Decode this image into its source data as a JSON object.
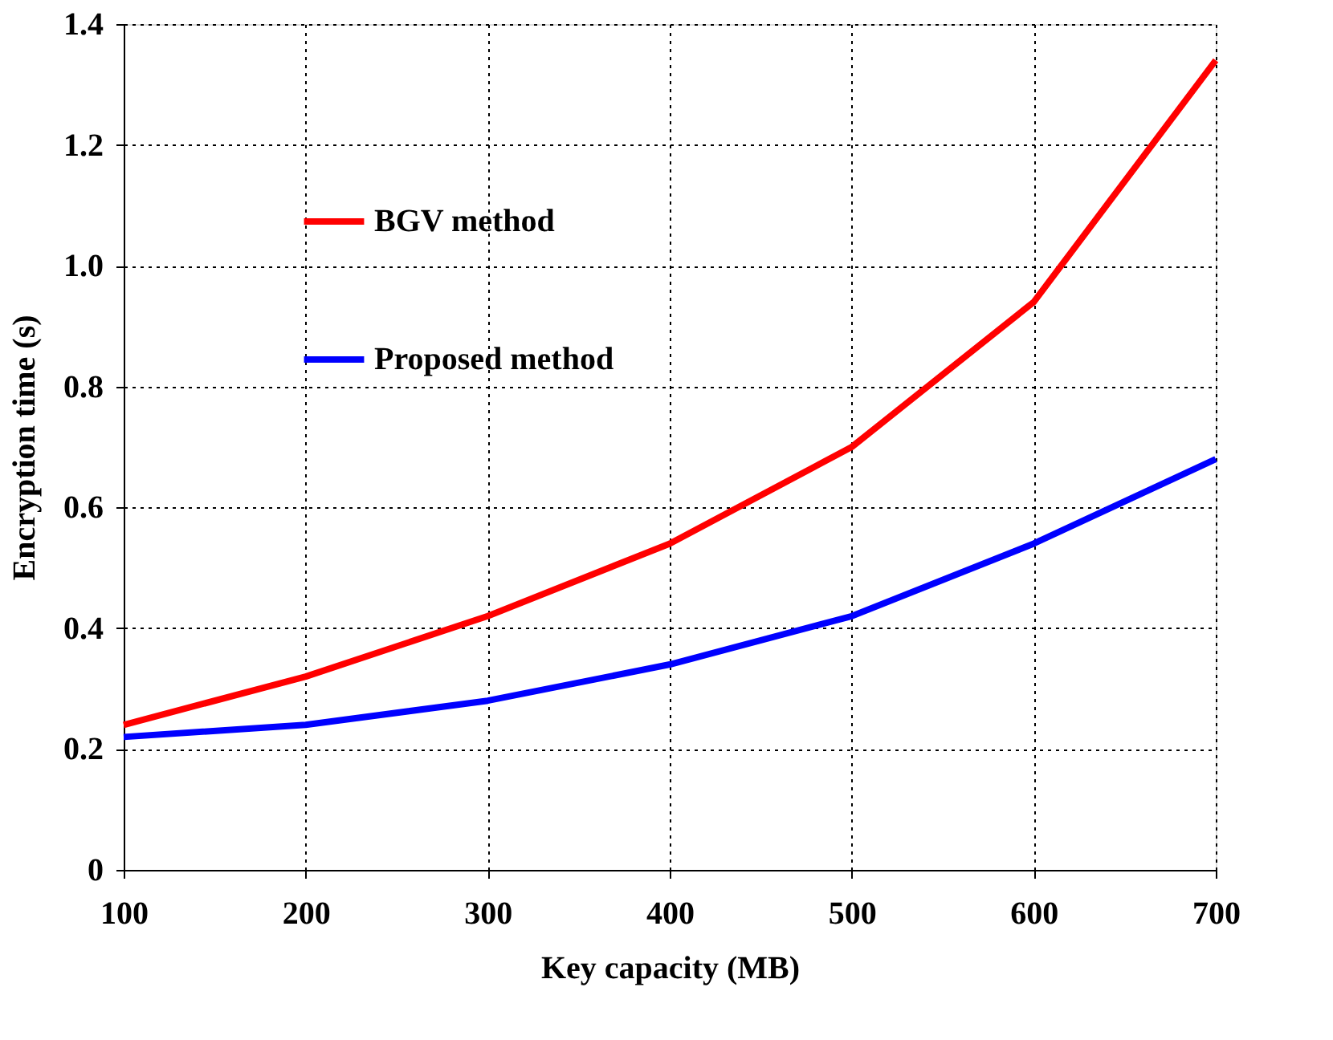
{
  "chart_data": {
    "type": "line",
    "xlabel": "Key capacity (MB)",
    "ylabel": "Encryption time (s)",
    "x": [
      100,
      200,
      300,
      400,
      500,
      600,
      700
    ],
    "series": [
      {
        "name": "BGV method",
        "color": "#ff0000",
        "values": [
          0.24,
          0.32,
          0.42,
          0.54,
          0.7,
          0.94,
          1.34
        ]
      },
      {
        "name": "Proposed method",
        "color": "#0000ff",
        "values": [
          0.22,
          0.24,
          0.28,
          0.34,
          0.42,
          0.54,
          0.68
        ]
      }
    ],
    "xlim": [
      100,
      700
    ],
    "xticks": [
      100,
      200,
      300,
      400,
      500,
      600,
      700
    ],
    "ylim": [
      0,
      1.4
    ],
    "yticks": [
      0,
      0.2,
      0.4,
      0.6,
      0.8,
      {
        "value": 1,
        "label": "1.0"
      },
      1.2,
      1.4
    ],
    "grid": true,
    "legend": "top left",
    "marker": "none",
    "line_style": "solid"
  }
}
